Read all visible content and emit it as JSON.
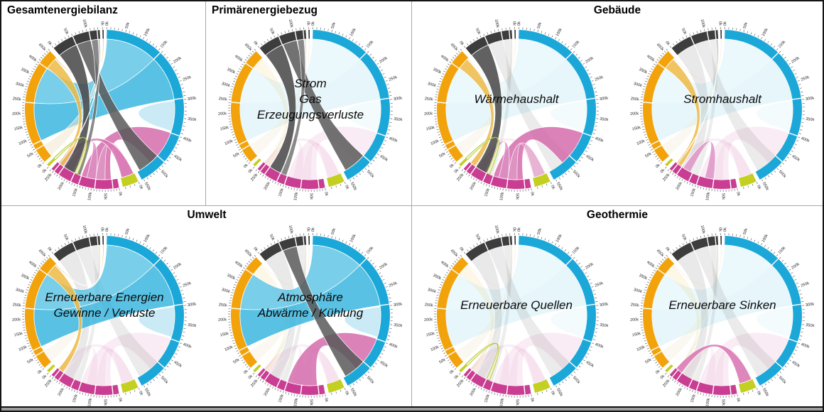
{
  "panels": [
    {
      "title": "Gesamtenergiebilanz",
      "align": "left"
    },
    {
      "title": "Primärenergiebezug",
      "align": "left"
    },
    {
      "title": "Gebäude",
      "align": "center"
    },
    {
      "title": "Umwelt",
      "align": "center"
    },
    {
      "title": "Geothermie",
      "align": "center"
    }
  ],
  "chart_data": {
    "type": "chord",
    "tick_unit_suffix": "k",
    "tick_minor_step_k": 10,
    "tick_major_step_k": 50,
    "segments": [
      {
        "id": "cyan",
        "color": "#1BA8D8",
        "start_deg": 1.8,
        "end_deg": 152.0,
        "total_k": 555,
        "major_labels": [
          "0k",
          "50k",
          "100k",
          "150k",
          "200k",
          "250k",
          "300k",
          "350k",
          "400k",
          "450k",
          "500k",
          "550k"
        ]
      },
      {
        "id": "lime_br",
        "color": "#C3CF21",
        "start_deg": 154.8,
        "end_deg": 166.6,
        "total_k": 35,
        "major_labels": [
          "0k"
        ]
      },
      {
        "id": "pink",
        "color": "#C93D92",
        "start_deg": 169.4,
        "end_deg": 221.6,
        "total_k": 260,
        "major_labels": [
          "0k",
          "50k",
          "100k",
          "150k",
          "200k",
          "250k"
        ]
      },
      {
        "id": "lime_bl",
        "color": "#C3CF21",
        "start_deg": 224.2,
        "end_deg": 226.2,
        "total_k": 5,
        "major_labels": [
          "0k"
        ]
      },
      {
        "id": "orange",
        "color": "#F2A30C",
        "start_deg": 228.8,
        "end_deg": 317.0,
        "total_k": 460,
        "major_labels": [
          "0k",
          "50k",
          "100k",
          "150k",
          "200k",
          "250k",
          "300k",
          "350k",
          "400k",
          "450k"
        ]
      },
      {
        "id": "gray",
        "color": "#3D3D3D",
        "start_deg": 320.4,
        "end_deg": 356.6,
        "total_k": 135,
        "major_labels": [
          "0k",
          "50k",
          "100k"
        ]
      },
      {
        "id": "tiny",
        "color": "#222222",
        "start_deg": 358.6,
        "end_deg": 359.4,
        "total_k": 2,
        "major_labels": [
          "0k"
        ]
      }
    ],
    "ribbons": [
      {
        "id": "cyan_a",
        "from": {
          "seg": "cyan",
          "k": [
            0,
            158
          ]
        },
        "to": {
          "seg": "orange",
          "k": [
            242,
            400
          ]
        },
        "color": "#58C2E5",
        "opacity": 0.8
      },
      {
        "id": "cyan_b",
        "from": {
          "seg": "cyan",
          "k": [
            158,
            296
          ]
        },
        "to": {
          "seg": "orange",
          "k": [
            78,
            242
          ]
        },
        "color": "#2FB3DD",
        "opacity": 0.8
      },
      {
        "id": "cyan_c",
        "from": {
          "seg": "cyan",
          "k": [
            300,
            392
          ]
        },
        "to": {
          "seg": "cyan",
          "k": [
            393,
            395
          ]
        },
        "color": "#A6DCEF",
        "opacity": 0.6
      },
      {
        "id": "cream_a",
        "from": {
          "seg": "orange",
          "k": [
            2,
            56
          ]
        },
        "to": {
          "seg": "gray",
          "k": [
            128,
            135
          ]
        },
        "color": "#F0E7CC",
        "opacity": 0.55,
        "ghost_opacity": 0.3
      },
      {
        "id": "magenta_big",
        "from": {
          "seg": "cyan",
          "k": [
            398,
            508
          ]
        },
        "to": {
          "seg": "pink",
          "k": [
            25,
            148
          ]
        },
        "color": "#D263A8",
        "opacity": 0.8
      },
      {
        "id": "pink_arch1",
        "from": {
          "seg": "pink",
          "k": [
            188,
            222
          ]
        },
        "to": {
          "seg": "pink",
          "k": [
            88,
            125
          ]
        },
        "color": "#DC8FC3",
        "opacity": 0.8
      },
      {
        "id": "pink_arch2",
        "from": {
          "seg": "lime_br",
          "k": [
            3,
            32
          ]
        },
        "to": {
          "seg": "pink",
          "k": [
            50,
            88
          ]
        },
        "color": "#E09BC6",
        "opacity": 0.7
      },
      {
        "id": "pink_lime",
        "from": {
          "seg": "pink",
          "k": [
            228,
            258
          ]
        },
        "to": {
          "seg": "lime_br",
          "k": [
            2,
            33
          ]
        },
        "color": "#D873B2",
        "opacity": 0.85
      },
      {
        "id": "orange_band",
        "from": {
          "seg": "orange",
          "k": [
            402,
            452
          ]
        },
        "to": {
          "seg": "pink",
          "k": [
            232,
            256
          ]
        },
        "color": "#EDBA45",
        "opacity": 0.85
      },
      {
        "id": "orange_line",
        "from": {
          "seg": "orange",
          "k": [
            454,
            458
          ]
        },
        "to": {
          "seg": "tiny",
          "k": [
            0,
            2
          ]
        },
        "color": "#DDAE3F",
        "opacity": 0.9
      },
      {
        "id": "gray_a",
        "from": {
          "seg": "gray",
          "k": [
            0,
            60
          ]
        },
        "to": {
          "seg": "pink",
          "k": [
            178,
            228
          ]
        },
        "color": "#4B4B4B",
        "opacity": 0.88
      },
      {
        "id": "gray_b",
        "from": {
          "seg": "gray",
          "k": [
            62,
            106
          ]
        },
        "to": {
          "seg": "cyan",
          "k": [
            478,
            548
          ]
        },
        "color": "#595959",
        "opacity": 0.85
      },
      {
        "id": "gray_c",
        "from": {
          "seg": "gray",
          "k": [
            108,
            128
          ]
        },
        "to": {
          "seg": "pink",
          "k": [
            152,
            176
          ]
        },
        "color": "#6B6B6B",
        "opacity": 0.8
      },
      {
        "id": "gray_line",
        "from": {
          "seg": "gray",
          "k": [
            130,
            133
          ]
        },
        "to": {
          "seg": "pink",
          "k": [
            249,
            252
          ]
        },
        "color": "#555555",
        "opacity": 0.9
      },
      {
        "id": "lime_arch",
        "from": {
          "seg": "lime_bl",
          "k": [
            0,
            5
          ]
        },
        "to": {
          "seg": "pink",
          "k": [
            165,
            178
          ]
        },
        "color": "#EFF3D4",
        "opacity": 0.95,
        "stroke": "#B6C527"
      }
    ],
    "arc_slashes": {
      "cyan": [
        158,
        296,
        398,
        478
      ],
      "orange": [
        56,
        78,
        242,
        400
      ],
      "pink": [
        22,
        88,
        148,
        178,
        228,
        248
      ],
      "gray": [
        60,
        106,
        128
      ]
    },
    "ghost_opacity_default": 0.12,
    "diagrams": [
      {
        "id": "gesamtenergiebilanz",
        "panel": 0,
        "center_label": [],
        "vivid": "all"
      },
      {
        "id": "primaerenergiebezug",
        "panel": 1,
        "center_label": [
          "Strom",
          "Gas",
          "Erzeugungsverluste"
        ],
        "vivid": [
          "gray_a",
          "gray_b",
          "gray_c"
        ]
      },
      {
        "id": "waermehaushalt",
        "panel": 2,
        "center_label": [
          "Wärmehaushalt"
        ],
        "vivid": [
          "gray_a",
          "orange_band",
          "magenta_big",
          "pink_arch1",
          "pink_arch2",
          "lime_arch"
        ]
      },
      {
        "id": "stromhaushalt",
        "panel": 2,
        "center_label": [
          "Stromhaushalt"
        ],
        "vivid": [
          "orange_band",
          "gray_line",
          "pink_arch1"
        ]
      },
      {
        "id": "erneuerbare_energien",
        "panel": 3,
        "center_label": [
          "Erneuerbare Energien",
          "Gewinne / Verluste"
        ],
        "vivid": [
          "cyan_a",
          "cyan_b",
          "cyan_c",
          "orange_band",
          "orange_line"
        ]
      },
      {
        "id": "atmosphaere",
        "panel": 3,
        "center_label": [
          "Atmosphäre",
          "Abwärme / Kühlung"
        ],
        "vivid": [
          "cyan_a",
          "cyan_b",
          "cyan_c",
          "gray_b",
          "magenta_big"
        ]
      },
      {
        "id": "erneuerbare_quellen",
        "panel": 4,
        "center_label": [
          "Erneuerbare Quellen"
        ],
        "vivid": [
          "lime_arch"
        ]
      },
      {
        "id": "erneuerbare_sinken",
        "panel": 4,
        "center_label": [
          "Erneuerbare Sinken"
        ],
        "vivid": [
          "pink_lime"
        ]
      }
    ]
  }
}
